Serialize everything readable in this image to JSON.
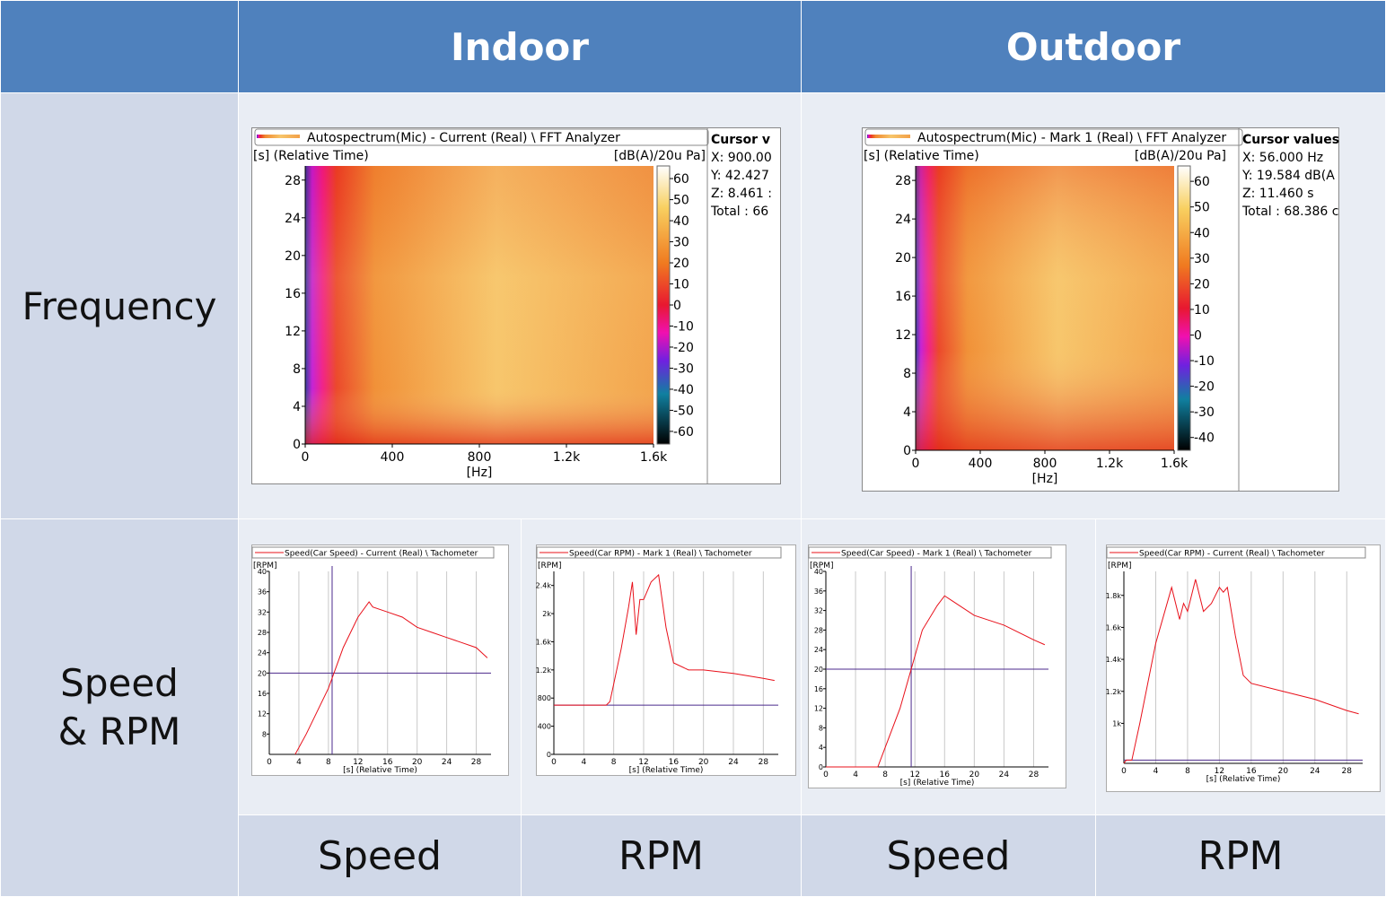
{
  "header": {
    "indoor": "Indoor",
    "outdoor": "Outdoor"
  },
  "rows": {
    "frequency": "Frequency",
    "speed_rpm": [
      "Speed",
      "& RPM"
    ]
  },
  "bottom_labels": [
    "Speed",
    "RPM",
    "Speed",
    "RPM"
  ],
  "spectrograms": [
    {
      "title": "Autospectrum(Mic) - Current (Real) \\  FFT Analyzer",
      "y_label": "[s] (Relative Time)",
      "z_label": "[dB(A)/20u Pa]",
      "x_label": "[Hz]",
      "xlim": [
        0,
        1600
      ],
      "xticks": [
        0,
        400,
        800,
        {
          "value": 1200,
          "label": "1.2k"
        },
        {
          "value": 1600,
          "label": "1.6k"
        }
      ],
      "ylim": [
        0,
        29.5
      ],
      "yticks": [
        0,
        4,
        8,
        12,
        16,
        20,
        24,
        28
      ],
      "zlim": [
        -66,
        66
      ],
      "zticks": [
        60,
        50,
        40,
        30,
        20,
        10,
        0,
        -10,
        -20,
        -30,
        -40,
        -50,
        -60
      ],
      "cursor": [
        "Cursor v",
        "X: 900.00",
        "Y: 42.427",
        "Z: 8.461 :",
        "Total : 66"
      ]
    },
    {
      "title": "Autospectrum(Mic) - Mark 1 (Real) \\  FFT Analyzer",
      "y_label": "[s] (Relative Time)",
      "z_label": "[dB(A)/20u Pa]",
      "x_label": "[Hz]",
      "xlim": [
        0,
        1600
      ],
      "xticks": [
        0,
        400,
        800,
        {
          "value": 1200,
          "label": "1.2k"
        },
        {
          "value": 1600,
          "label": "1.6k"
        }
      ],
      "ylim": [
        0,
        29.5
      ],
      "yticks": [
        0,
        4,
        8,
        12,
        16,
        20,
        24,
        28
      ],
      "zlim": [
        -45,
        66
      ],
      "zticks": [
        60,
        50,
        40,
        30,
        20,
        10,
        0,
        -10,
        -20,
        -30,
        -40
      ],
      "cursor": [
        "Cursor values",
        "X: 56.000 Hz",
        "Y: 19.584 dB(A",
        "Z: 11.460 s",
        "Total : 68.386 c"
      ]
    }
  ],
  "charts": [
    {
      "title": "Speed(Car Speed) - Current (Real) \\  Tachometer",
      "y_label": "[RPM]",
      "x_label": "[s] (Relative Time)",
      "color": "#e8101a",
      "xlim": [
        0,
        30
      ],
      "xticks": [
        0,
        4,
        8,
        12,
        16,
        20,
        24,
        28
      ],
      "ylim": [
        4,
        40
      ],
      "yticks": [
        8,
        12,
        16,
        20,
        24,
        28,
        32,
        36,
        40
      ],
      "x": [
        3.5,
        5,
        8,
        10,
        12,
        13.5,
        14,
        16,
        18,
        20,
        22,
        24,
        26,
        28,
        29.5
      ],
      "y": [
        4,
        8,
        17,
        25,
        31,
        34,
        33,
        32,
        31,
        29,
        28,
        27,
        26,
        25,
        23
      ],
      "cursor_x": 8.5,
      "cursor_y": 20
    },
    {
      "title": "Speed(Car RPM) - Mark 1 (Real) \\  Tachometer",
      "y_label": "[RPM]",
      "x_label": "[s] (Relative Time)",
      "color": "#e8101a",
      "xlim": [
        0,
        30
      ],
      "xticks": [
        0,
        4,
        8,
        12,
        16,
        20,
        24,
        28
      ],
      "ylim": [
        0,
        2600
      ],
      "yticks": [
        0,
        400,
        800,
        {
          "value": 1200,
          "label": "1.2k"
        },
        {
          "value": 1600,
          "label": "1.6k"
        },
        {
          "value": 2000,
          "label": "2k"
        },
        {
          "value": 2400,
          "label": "2.4k"
        }
      ],
      "x": [
        0,
        7,
        7.5,
        9,
        10,
        10.5,
        11,
        11.5,
        12,
        13,
        14,
        15,
        16,
        18,
        20,
        24,
        28,
        29.5
      ],
      "y": [
        700,
        700,
        750,
        1500,
        2100,
        2450,
        1700,
        2200,
        2200,
        2450,
        2550,
        1800,
        1300,
        1200,
        1200,
        1150,
        1080,
        1050
      ],
      "cursor_y": 700
    },
    {
      "title": "Speed(Car Speed) - Mark 1 (Real) \\  Tachometer",
      "y_label": "[RPM]",
      "x_label": "[s] (Relative Time)",
      "color": "#e8101a",
      "xlim": [
        0,
        30
      ],
      "xticks": [
        0,
        4,
        8,
        12,
        16,
        20,
        24,
        28
      ],
      "ylim": [
        0,
        40
      ],
      "yticks": [
        0,
        4,
        8,
        12,
        16,
        20,
        24,
        28,
        32,
        36,
        40
      ],
      "x": [
        0,
        7,
        8,
        10,
        11.5,
        13,
        15,
        16,
        17,
        20,
        24,
        28,
        29.5
      ],
      "y": [
        0,
        0,
        4,
        12,
        20,
        28,
        33,
        35,
        34,
        31,
        29,
        26,
        25
      ],
      "cursor_x": 11.5,
      "cursor_y": 20
    },
    {
      "title": "Speed(Car RPM) - Current (Real) \\  Tachometer",
      "y_label": "[RPM]",
      "x_label": "[s] (Relative Time)",
      "color": "#e8101a",
      "xlim": [
        0,
        30
      ],
      "xticks": [
        0,
        4,
        8,
        12,
        16,
        20,
        24,
        28
      ],
      "ylim": [
        750,
        1950
      ],
      "yticks": [
        {
          "value": 1000,
          "label": "1k"
        },
        {
          "value": 1200,
          "label": "1.2k"
        },
        {
          "value": 1400,
          "label": "1.4k"
        },
        {
          "value": 1600,
          "label": "1.6k"
        },
        {
          "value": 1800,
          "label": "1.8k"
        }
      ],
      "x": [
        0,
        0.3,
        1,
        2,
        4,
        6,
        7,
        7.5,
        8,
        9,
        10,
        11,
        12,
        12.5,
        13,
        14,
        15,
        16,
        20,
        24,
        28,
        29.5
      ],
      "y": [
        750,
        770,
        770,
        1000,
        1500,
        1850,
        1650,
        1750,
        1700,
        1900,
        1700,
        1750,
        1850,
        1820,
        1850,
        1550,
        1300,
        1250,
        1200,
        1150,
        1080,
        1060
      ],
      "cursor_y": 770
    }
  ]
}
